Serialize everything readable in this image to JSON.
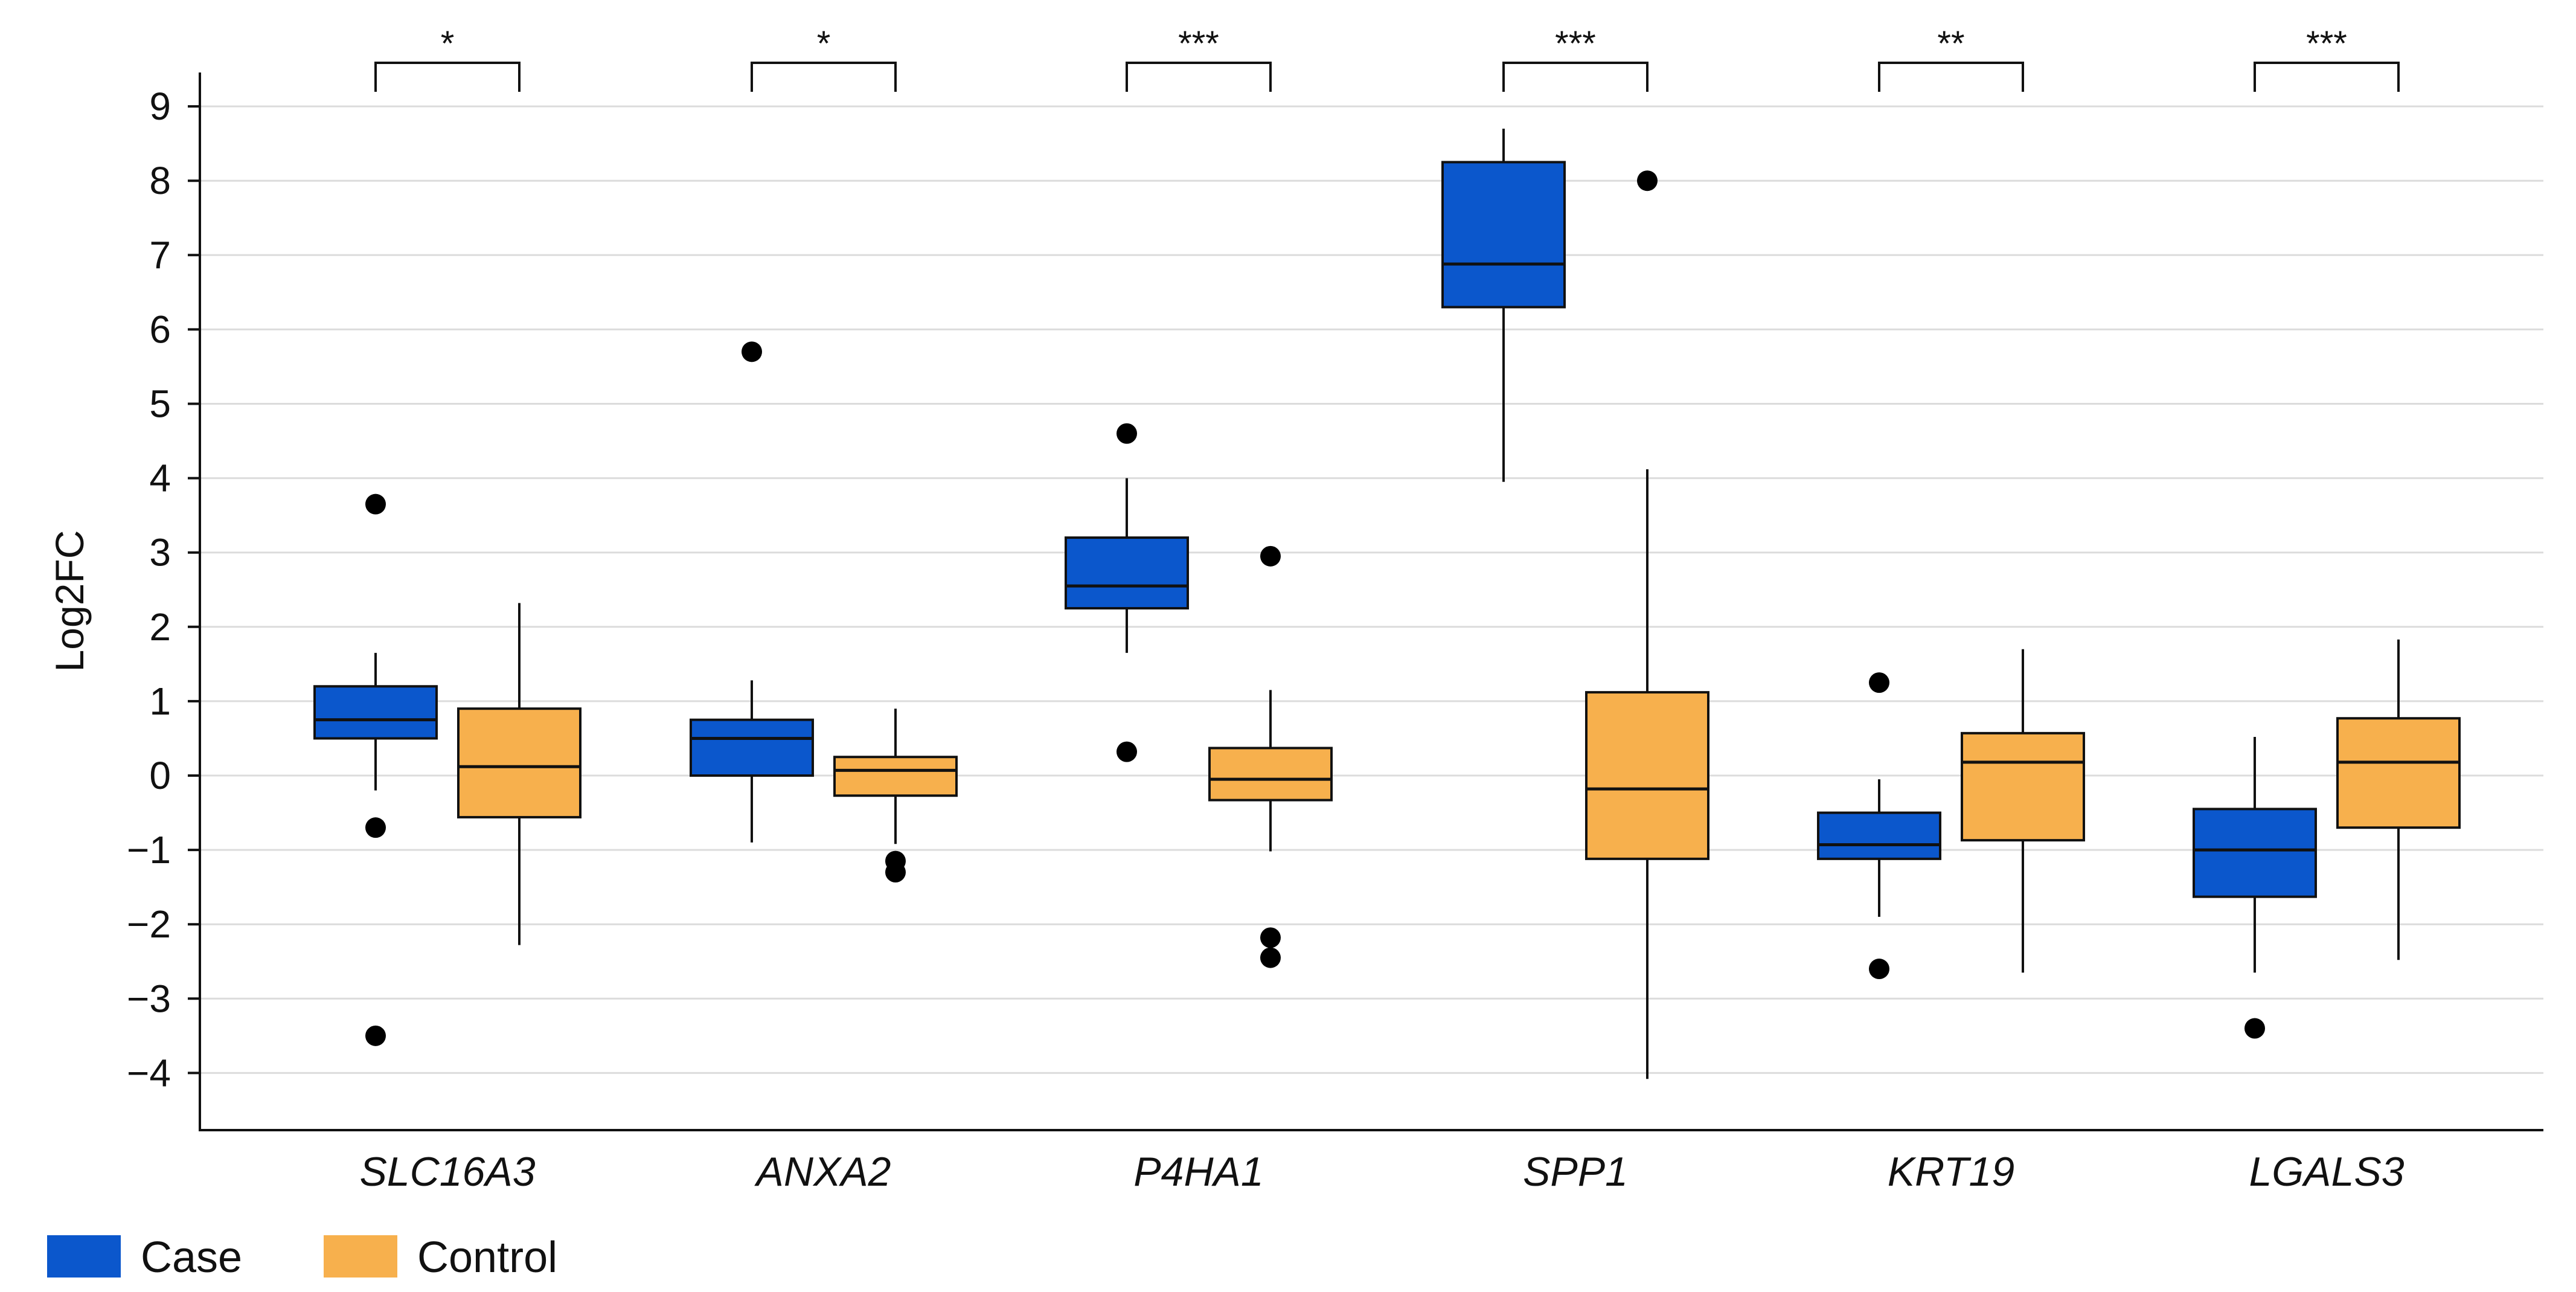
{
  "chart_data": {
    "type": "box",
    "ylabel": "Log2FC",
    "xlabel": "",
    "ylim": [
      -4.7,
      9.45
    ],
    "yticks": [
      9,
      8,
      7,
      6,
      5,
      4,
      3,
      2,
      1,
      0,
      -1,
      -2,
      -3,
      -4
    ],
    "ytick_labels": [
      "9",
      "8",
      "7",
      "6",
      "5",
      "4",
      "3",
      "2",
      "1",
      "0",
      "−1",
      "−2",
      "−3",
      "−4"
    ],
    "grid": "horizontal",
    "legend_position": "bottom-left",
    "categories": [
      "SLC16A3",
      "ANXA2",
      "P4HA1",
      "SPP1",
      "KRT19",
      "LGALS3"
    ],
    "significance": [
      "*",
      "*",
      "***",
      "***",
      "**",
      "***"
    ],
    "series": [
      {
        "name": "Case",
        "color": "#0b57cc",
        "boxes": [
          {
            "whisker_low": -0.2,
            "q1": 0.5,
            "median": 0.75,
            "q3": 1.2,
            "whisker_high": 1.65,
            "outliers": [
              3.65,
              -0.7,
              -3.5
            ]
          },
          {
            "whisker_low": -0.9,
            "q1": 0.0,
            "median": 0.5,
            "q3": 0.75,
            "whisker_high": 1.28,
            "outliers": [
              5.7
            ]
          },
          {
            "whisker_low": 1.65,
            "q1": 2.25,
            "median": 2.55,
            "q3": 3.2,
            "whisker_high": 4.0,
            "outliers": [
              4.6,
              0.32
            ]
          },
          {
            "whisker_low": 3.95,
            "q1": 6.3,
            "median": 6.88,
            "q3": 8.25,
            "whisker_high": 8.7,
            "outliers": []
          },
          {
            "whisker_low": -1.9,
            "q1": -1.12,
            "median": -0.93,
            "q3": -0.5,
            "whisker_high": -0.05,
            "outliers": [
              1.25,
              -2.6
            ]
          },
          {
            "whisker_low": -2.65,
            "q1": -1.63,
            "median": -1.0,
            "q3": -0.45,
            "whisker_high": 0.52,
            "outliers": [
              -3.4
            ]
          }
        ]
      },
      {
        "name": "Control",
        "color": "#f7b04d",
        "boxes": [
          {
            "whisker_low": -2.28,
            "q1": -0.56,
            "median": 0.12,
            "q3": 0.9,
            "whisker_high": 2.32,
            "outliers": []
          },
          {
            "whisker_low": -0.92,
            "q1": -0.27,
            "median": 0.07,
            "q3": 0.25,
            "whisker_high": 0.9,
            "outliers": [
              -1.15,
              -1.3
            ]
          },
          {
            "whisker_low": -1.02,
            "q1": -0.33,
            "median": -0.05,
            "q3": 0.37,
            "whisker_high": 1.15,
            "outliers": [
              2.95,
              -2.18,
              -2.45
            ]
          },
          {
            "whisker_low": -4.08,
            "q1": -1.12,
            "median": -0.18,
            "q3": 1.12,
            "whisker_high": 4.12,
            "outliers": [
              8.0
            ]
          },
          {
            "whisker_low": -2.65,
            "q1": -0.87,
            "median": 0.18,
            "q3": 0.57,
            "whisker_high": 1.7,
            "outliers": []
          },
          {
            "whisker_low": -2.48,
            "q1": -0.7,
            "median": 0.18,
            "q3": 0.77,
            "whisker_high": 1.83,
            "outliers": []
          }
        ]
      }
    ]
  }
}
